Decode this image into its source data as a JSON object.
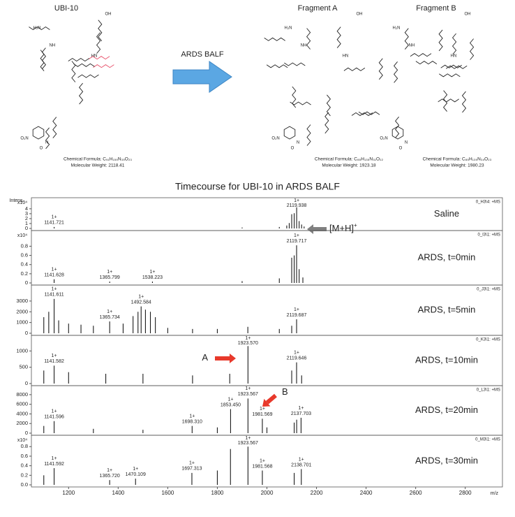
{
  "structures": [
    {
      "name": "UBI-10",
      "formula": "Chemical Formula: C₉₁H₁₅₉N₃₅O₂₃",
      "weight": "Molecular Weight: 2118.41",
      "atoms": [
        "H₂N",
        "NH",
        "HN",
        "OH",
        "O₂N",
        "N",
        "O"
      ]
    },
    {
      "name": "Fragment A",
      "formula": "Chemical Formula: C₈₅H₁₃₅N₃₁O₂₂",
      "weight": "Molecular Weight: 1923.18",
      "atoms": [
        "H₂N",
        "NH",
        "HN",
        "OH",
        "O₂N",
        "N",
        "O"
      ]
    },
    {
      "name": "Fragment B",
      "formula": "Chemical Formula: C₈₅H₁₃₉N₃₄O₂₃",
      "weight": "Molecular Weight: 1980.23",
      "atoms": [
        "H₂N",
        "NH",
        "HN",
        "OH",
        "O₂N",
        "N",
        "O"
      ]
    }
  ],
  "process_label": "ARDS BALF",
  "title": "Timecourse for UBI-10 in ARDS BALF",
  "intensity_label": "Intens.",
  "chart_data": [
    {
      "type": "stem",
      "label": "Saline",
      "run": "0_H3\\4: +MS",
      "multiplier": "x10⁴",
      "color": "#1a1a1a",
      "x": [
        1141.721,
        1900,
        2050,
        2080,
        2090,
        2100,
        2110,
        2119.938,
        2130,
        2140,
        2150
      ],
      "values": [
        0.3,
        0.2,
        0.3,
        0.6,
        1.1,
        2.9,
        3.1,
        4.3,
        1.5,
        0.8,
        0.4
      ],
      "xlim": [
        1050,
        2950
      ],
      "ylim": [
        0,
        5.4
      ],
      "yticks": [
        0,
        1,
        2,
        3,
        4
      ],
      "annotations": [
        {
          "x": 1141.721,
          "charge": "1+",
          "label": "1141.721"
        },
        {
          "x": 2119.938,
          "charge": "1+",
          "label": "2119.938"
        }
      ],
      "arrow": {
        "label": "[M+H]",
        "sup": "+",
        "color": "#808080"
      }
    },
    {
      "type": "stem",
      "label": "ARDS, t=0min",
      "run": "0_I3\\1: +MS",
      "multiplier": "x10⁴",
      "color": "#1a1a1a",
      "x": [
        1141.628,
        1365.799,
        1538.223,
        1900,
        2050,
        2100,
        2110,
        2119.717,
        2130,
        2145
      ],
      "values": [
        0.08,
        0.03,
        0.03,
        0.04,
        0.1,
        0.55,
        0.6,
        0.82,
        0.3,
        0.12
      ],
      "xlim": [
        1050,
        2950
      ],
      "ylim": [
        0,
        1.05
      ],
      "yticks": [
        0,
        0.2,
        0.4,
        0.6,
        0.8
      ],
      "annotations": [
        {
          "x": 1141.628,
          "charge": "1+",
          "label": "1141.628"
        },
        {
          "x": 1365.799,
          "charge": "1+",
          "label": "1365.799"
        },
        {
          "x": 1538.223,
          "charge": "1+",
          "label": "1538.223"
        },
        {
          "x": 2119.717,
          "charge": "1+",
          "label": "2119.717"
        }
      ]
    },
    {
      "type": "stem",
      "label": "ARDS, t=5min",
      "run": "0_J3\\1: +MS",
      "color": "#1a1a1a",
      "x": [
        1100,
        1120,
        1141.611,
        1160,
        1200,
        1250,
        1300,
        1365.734,
        1420,
        1460,
        1480,
        1492.584,
        1510,
        1530,
        1550,
        1600,
        1700,
        1800,
        1923,
        2050,
        2100,
        2119.687
      ],
      "values": [
        1500,
        2000,
        3200,
        1200,
        900,
        800,
        700,
        1100,
        900,
        1600,
        2000,
        2500,
        2200,
        2000,
        1500,
        500,
        400,
        400,
        600,
        400,
        700,
        1300
      ],
      "xlim": [
        1050,
        2950
      ],
      "ylim": [
        0,
        4100
      ],
      "yticks": [
        0,
        1000,
        2000,
        3000
      ],
      "annotations": [
        {
          "x": 1141.611,
          "charge": "1+",
          "label": "1141.611"
        },
        {
          "x": 1365.734,
          "charge": "1+",
          "label": "1365.734"
        },
        {
          "x": 1492.584,
          "charge": "1+",
          "label": "1492.584"
        },
        {
          "x": 2119.687,
          "charge": "1+",
          "label": "2119.687"
        }
      ]
    },
    {
      "type": "stem",
      "label": "ARDS, t=10min",
      "run": "0_K3\\1: +MS",
      "color": "#1a1a1a",
      "x": [
        1100,
        1141.582,
        1200,
        1350,
        1500,
        1700,
        1850,
        1923.57,
        2100,
        2119.646,
        2140
      ],
      "values": [
        400,
        550,
        350,
        300,
        300,
        250,
        300,
        1150,
        400,
        650,
        250
      ],
      "xlim": [
        1050,
        2950
      ],
      "ylim": [
        0,
        1350
      ],
      "yticks": [
        0,
        500,
        1000
      ],
      "annotations": [
        {
          "x": 1141.582,
          "charge": "1+",
          "label": "1141.582"
        },
        {
          "x": 1923.57,
          "charge": "1+",
          "label": "1923.570"
        },
        {
          "x": 2119.646,
          "charge": "1+",
          "label": "2119.646"
        }
      ],
      "arrow": {
        "label": "A",
        "color": "#e8392b"
      }
    },
    {
      "type": "stem",
      "label": "ARDS, t=20min",
      "run": "0_L3\\1: +MS",
      "color": "#1a1a1a",
      "x": [
        1100,
        1141.596,
        1300,
        1500,
        1698.31,
        1800,
        1853.45,
        1923.567,
        1981.569,
        2000,
        2110,
        2120,
        2137.703
      ],
      "values": [
        1500,
        2500,
        900,
        700,
        1500,
        1200,
        5000,
        7200,
        3000,
        1200,
        2200,
        2800,
        3200
      ],
      "xlim": [
        1050,
        2950
      ],
      "ylim": [
        0,
        9000
      ],
      "yticks": [
        0,
        2000,
        4000,
        6000,
        8000
      ],
      "annotations": [
        {
          "x": 1141.596,
          "charge": "1+",
          "label": "1141.596"
        },
        {
          "x": 1698.31,
          "charge": "1+",
          "label": "1698.310"
        },
        {
          "x": 1853.45,
          "charge": "1+",
          "label": "1853.450"
        },
        {
          "x": 1923.567,
          "charge": "1+",
          "label": "1923.567"
        },
        {
          "x": 1981.569,
          "charge": "1+",
          "label": "1981.569"
        },
        {
          "x": 2137.703,
          "charge": "1+",
          "label": "2137.703"
        }
      ],
      "arrow": {
        "label": "B",
        "color": "#e8392b"
      }
    },
    {
      "type": "stem",
      "label": "ARDS, t=30min",
      "run": "0_M3\\1: +MS",
      "multiplier": "x10⁴",
      "color": "#1a1a1a",
      "x": [
        1100,
        1141.592,
        1365.72,
        1470.109,
        1697.313,
        1800,
        1853,
        1923.567,
        1981.568,
        2110,
        2138.701
      ],
      "values": [
        0.2,
        0.35,
        0.1,
        0.13,
        0.25,
        0.3,
        0.75,
        0.8,
        0.3,
        0.25,
        0.33
      ],
      "xlim": [
        1050,
        2950
      ],
      "ylim": [
        0,
        0.95
      ],
      "yticks": [
        {
          "value": 0,
          "label": "0.0"
        },
        0.2,
        0.4,
        0.6,
        0.8
      ],
      "xticks": [
        1200,
        1400,
        1600,
        1800,
        2000,
        2200,
        2400,
        2600,
        2800
      ],
      "xlabel": "m/z",
      "annotations": [
        {
          "x": 1141.592,
          "charge": "1+",
          "label": "1141.592"
        },
        {
          "x": 1365.72,
          "charge": "1+",
          "label": "1365.720"
        },
        {
          "x": 1470.109,
          "charge": "1+",
          "label": "1470.109"
        },
        {
          "x": 1697.313,
          "charge": "1+",
          "label": "1697.313"
        },
        {
          "x": 1923.567,
          "charge": "1+",
          "label": "1923.567"
        },
        {
          "x": 1981.568,
          "charge": "1+",
          "label": "1981.568"
        },
        {
          "x": 2138.701,
          "charge": "1+",
          "label": "2138.701"
        }
      ]
    }
  ]
}
